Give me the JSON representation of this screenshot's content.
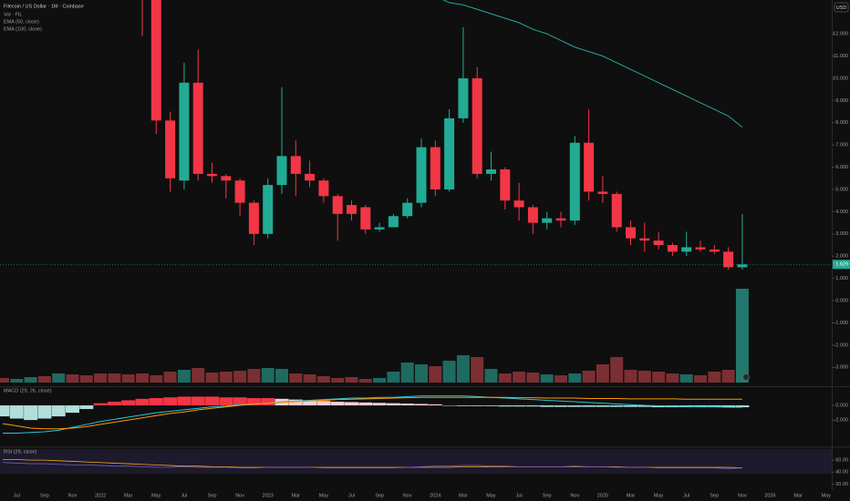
{
  "chart_data": {
    "type": "candlestick",
    "title": "Filecoin / US Dollar · 1M · Coinbase",
    "currency": "USD",
    "categories": [
      null,
      "Jul",
      null,
      "Sep",
      null,
      "Nov",
      null,
      "2022",
      null,
      "Mar",
      null,
      "May",
      null,
      "Jul",
      null,
      "Sep",
      null,
      "Nov",
      null,
      "2023",
      null,
      "Mar",
      null,
      "May",
      null,
      "Jul",
      null,
      "Sep",
      null,
      "Nov",
      null,
      "2024",
      null,
      "Mar",
      null,
      "May",
      null,
      "Jul",
      null,
      "Sep",
      null,
      "Nov",
      null,
      "2025",
      null,
      "Mar",
      null,
      "May",
      null,
      "Jul",
      null,
      "Sep",
      null,
      "Nov",
      null,
      "2026",
      null,
      "Mar",
      null,
      "May"
    ],
    "open": [
      null,
      null,
      null,
      null,
      null,
      null,
      null,
      null,
      null,
      null,
      28,
      20,
      8.1,
      5.4,
      9.8,
      5.7,
      5.6,
      5.4,
      4.4,
      3.0,
      5.2,
      6.5,
      5.7,
      5.4,
      4.7,
      4.3,
      4.2,
      3.2,
      3.3,
      3.8,
      4.4,
      6.9,
      5.0,
      8.2,
      10.0,
      5.7,
      5.9,
      4.5,
      4.2,
      3.5,
      3.7,
      3.6,
      7.1,
      4.9,
      4.8,
      3.3,
      2.8,
      2.7,
      2.5,
      2.2,
      2.4,
      2.3,
      2.2,
      1.5,
      null,
      null,
      null,
      null,
      null,
      null
    ],
    "high": [
      null,
      null,
      null,
      null,
      null,
      null,
      null,
      null,
      null,
      null,
      30,
      21,
      8.5,
      10.7,
      11.3,
      6.2,
      5.7,
      5.5,
      4.5,
      5.5,
      9.6,
      7.2,
      6.3,
      5.5,
      4.8,
      4.5,
      4.3,
      3.5,
      3.9,
      4.6,
      7.3,
      7.2,
      8.6,
      12.3,
      10.5,
      6.7,
      6.0,
      5.3,
      4.3,
      4.0,
      4.0,
      7.4,
      8.6,
      5.6,
      4.9,
      3.6,
      3.5,
      3.1,
      2.6,
      3.1,
      2.7,
      2.5,
      2.4,
      3.9,
      null,
      null,
      null,
      null,
      null,
      null
    ],
    "low": [
      null,
      null,
      null,
      null,
      null,
      null,
      null,
      null,
      null,
      null,
      11.9,
      7.5,
      4.9,
      5.0,
      5.4,
      5.3,
      4.6,
      3.8,
      2.5,
      2.8,
      4.8,
      4.7,
      5.1,
      4.4,
      2.7,
      3.6,
      3.0,
      3.1,
      3.3,
      3.7,
      4.2,
      4.7,
      4.9,
      8.0,
      5.5,
      5.4,
      4.1,
      3.6,
      3.0,
      3.2,
      3.3,
      3.4,
      4.5,
      4.4,
      3.1,
      2.5,
      2.2,
      2.3,
      2.0,
      2.0,
      2.2,
      2.1,
      1.4,
      1.4,
      null,
      null,
      null,
      null,
      null,
      null
    ],
    "close": [
      null,
      null,
      null,
      null,
      null,
      null,
      null,
      null,
      null,
      null,
      20,
      8.1,
      5.5,
      9.8,
      5.7,
      5.6,
      5.4,
      4.4,
      3.0,
      5.2,
      6.5,
      5.7,
      5.4,
      4.7,
      3.9,
      3.9,
      3.2,
      3.3,
      3.8,
      4.4,
      6.9,
      5.0,
      8.2,
      10.0,
      5.7,
      5.9,
      4.5,
      4.2,
      3.5,
      3.7,
      3.6,
      7.1,
      4.9,
      4.8,
      3.3,
      2.8,
      2.7,
      2.5,
      2.2,
      2.4,
      2.3,
      2.2,
      1.5,
      1.629,
      null,
      null,
      null,
      null,
      null,
      null
    ],
    "up_color": "#22ab94",
    "down_color": "#f23645",
    "ylim": [
      -3.85,
      13.52
    ],
    "yticks": [
      {
        "value": 12,
        "label": "12.000"
      },
      {
        "value": 11,
        "label": "11.000"
      },
      {
        "value": 10,
        "label": "10.000"
      },
      {
        "value": 9,
        "label": "9.000"
      },
      {
        "value": 8,
        "label": "8.000"
      },
      {
        "value": 7,
        "label": "7.000"
      },
      {
        "value": 6,
        "label": "6.000"
      },
      {
        "value": 5,
        "label": "5.000"
      },
      {
        "value": 4,
        "label": "4.000"
      },
      {
        "value": 3,
        "label": "3.000"
      },
      {
        "value": 2,
        "label": "2.000"
      },
      {
        "value": 1,
        "label": "1.000"
      },
      {
        "value": 0,
        "label": "0.000"
      },
      {
        "value": -1,
        "label": "-1.000"
      },
      {
        "value": -2,
        "label": "-2.000"
      },
      {
        "value": -3,
        "label": "-3.000"
      }
    ],
    "grid": false,
    "volume": {
      "title": "Vol · FIL",
      "ylim": [
        0,
        110
      ],
      "values": [
        5,
        4,
        6,
        7,
        10,
        9,
        8,
        10,
        10,
        9,
        10,
        8,
        12,
        14,
        16,
        11,
        12,
        13,
        15,
        16,
        15,
        10,
        9,
        7,
        5,
        6,
        4,
        5,
        12,
        22,
        20,
        18,
        24,
        30,
        28,
        15,
        10,
        12,
        11,
        9,
        8,
        10,
        13,
        20,
        28,
        14,
        13,
        12,
        10,
        9,
        8,
        12,
        14,
        103,
        null,
        null,
        null,
        null,
        null,
        null
      ],
      "colors": [
        "#7b2f33",
        "#1d6b61",
        "#1d6b61",
        "#7b2f33",
        "#1d6b61",
        "#7b2f33",
        "#7b2f33",
        "#7b2f33",
        "#7b2f33",
        "#7b2f33",
        "#7b2f33",
        "#7b2f33",
        "#7b2f33",
        "#1d6b61",
        "#7b2f33",
        "#7b2f33",
        "#7b2f33",
        "#7b2f33",
        "#7b2f33",
        "#1d6b61",
        "#1d6b61",
        "#7b2f33",
        "#7b2f33",
        "#7b2f33",
        "#7b2f33",
        "#7b2f33",
        "#7b2f33",
        "#1d6b61",
        "#1d6b61",
        "#1d6b61",
        "#1d6b61",
        "#7b2f33",
        "#1d6b61",
        "#1d6b61",
        "#7b2f33",
        "#1d6b61",
        "#7b2f33",
        "#7b2f33",
        "#7b2f33",
        "#1d6b61",
        "#7b2f33",
        "#1d6b61",
        "#7b2f33",
        "#7b2f33",
        "#7b2f33",
        "#7b2f33",
        "#7b2f33",
        "#7b2f33",
        "#7b2f33",
        "#1d6b61",
        "#7b2f33",
        "#7b2f33",
        "#7b2f33",
        "#22786d",
        null,
        null,
        null,
        null,
        null,
        null
      ]
    },
    "ema50": {
      "title": "EMA (50, close)"
    },
    "ema100": {
      "title": "EMA (100, close)",
      "color": "#26a69a",
      "values": [
        null,
        null,
        null,
        null,
        null,
        null,
        null,
        null,
        null,
        null,
        null,
        null,
        null,
        null,
        null,
        null,
        null,
        null,
        null,
        null,
        null,
        null,
        null,
        null,
        null,
        null,
        null,
        null,
        null,
        null,
        null,
        13.7,
        13.4,
        13.3,
        13.1,
        12.9,
        12.7,
        12.5,
        12.2,
        12.0,
        11.7,
        11.4,
        11.2,
        11.0,
        10.7,
        10.4,
        10.1,
        9.8,
        9.5,
        9.2,
        8.9,
        8.6,
        8.3,
        7.8,
        null,
        null,
        null,
        null,
        null,
        null
      ]
    },
    "macd": {
      "title": "MACD (29, 26, close)",
      "ylim": [
        -5.6,
        2.5
      ],
      "yticks": [
        {
          "value": 0,
          "label": "0.000"
        },
        {
          "value": -2,
          "label": "-2.000"
        }
      ],
      "histogram": [
        -1.5,
        -1.8,
        -2.0,
        -1.8,
        -1.5,
        -1.0,
        -0.5,
        0.3,
        0.5,
        0.7,
        0.9,
        1.0,
        1.1,
        1.2,
        1.2,
        1.2,
        1.1,
        1.1,
        1.0,
        1.0,
        0.9,
        0.8,
        0.7,
        0.6,
        0.5,
        0.45,
        0.4,
        0.35,
        0.3,
        0.25,
        0.2,
        0.15,
        -0.05,
        -0.1,
        -0.1,
        -0.1,
        -0.15,
        -0.15,
        -0.15,
        -0.2,
        -0.2,
        -0.2,
        -0.2,
        -0.2,
        -0.2,
        -0.2,
        -0.2,
        -0.25,
        -0.25,
        -0.25,
        -0.25,
        -0.25,
        -0.25,
        -0.25,
        null,
        null,
        null,
        null,
        null,
        null
      ],
      "histogram_colors": [
        "#b2dfdb",
        "#b2dfdb",
        "#b2dfdb",
        "#b2dfdb",
        "#b2dfdb",
        "#b2dfdb",
        "#b2dfdb",
        "#f23645",
        "#f23645",
        "#f23645",
        "#f23645",
        "#f23645",
        "#f23645",
        "#f23645",
        "#f23645",
        "#f23645",
        "#f23645",
        "#f23645",
        "#f23645",
        "#f23645",
        "#ffcdd2",
        "#ffcdd2",
        "#ffcdd2",
        "#ffcdd2",
        "#ffcdd2",
        "#ffcdd2",
        "#ffcdd2",
        "#ffcdd2",
        "#ffcdd2",
        "#ffcdd2",
        "#ffcdd2",
        "#ffcdd2",
        "#b2dfdb",
        "#b2dfdb",
        "#b2dfdb",
        "#b2dfdb",
        "#b2dfdb",
        "#b2dfdb",
        "#b2dfdb",
        "#b2dfdb",
        "#b2dfdb",
        "#b2dfdb",
        "#b2dfdb",
        "#b2dfdb",
        "#b2dfdb",
        "#b2dfdb",
        "#b2dfdb",
        "#b2dfdb",
        "#b2dfdb",
        "#b2dfdb",
        "#b2dfdb",
        "#b2dfdb",
        "#b2dfdb",
        "#b2dfdb",
        null,
        null,
        null,
        null,
        null,
        null
      ],
      "macd": [
        -3.8,
        -3.8,
        -3.7,
        -3.6,
        -3.4,
        -3.0,
        -2.6,
        -2.2,
        -1.9,
        -1.6,
        -1.3,
        -1.0,
        -0.8,
        -0.6,
        -0.4,
        -0.2,
        -0.1,
        0.1,
        0.2,
        0.3,
        0.5,
        0.6,
        0.7,
        0.8,
        0.9,
        1.0,
        1.0,
        1.1,
        1.1,
        1.2,
        1.3,
        1.3,
        1.3,
        1.3,
        1.2,
        1.1,
        1.0,
        0.9,
        0.8,
        0.7,
        0.6,
        0.5,
        0.4,
        0.3,
        0.2,
        0.1,
        0.0,
        -0.05,
        -0.1,
        -0.15,
        -0.2,
        -0.2,
        -0.25,
        -0.25,
        null,
        null,
        null,
        null,
        null,
        null
      ],
      "signal": [
        -2.5,
        -2.8,
        -3.1,
        -3.2,
        -3.2,
        -3.1,
        -2.9,
        -2.6,
        -2.3,
        -2.0,
        -1.7,
        -1.4,
        -1.1,
        -0.9,
        -0.6,
        -0.4,
        -0.2,
        0,
        0.2,
        0.3,
        0.4,
        0.5,
        0.6,
        0.7,
        0.8,
        0.85,
        0.9,
        0.95,
        1.0,
        1.05,
        1.1,
        1.1,
        1.1,
        1.1,
        1.1,
        1.1,
        1.1,
        1.05,
        1.05,
        1.0,
        1.0,
        1.0,
        0.95,
        0.95,
        0.95,
        0.9,
        0.9,
        0.9,
        0.9,
        0.85,
        0.85,
        0.85,
        0.85,
        0.85,
        null,
        null,
        null,
        null,
        null,
        null
      ],
      "macd_color": "#26c6da",
      "signal_color": "#ff9800"
    },
    "rsi": {
      "title": "RSI (29, close)",
      "ylim": [
        13,
        80
      ],
      "yticks": [
        {
          "value": 60,
          "label": "60.00"
        },
        {
          "value": 40,
          "label": "40.00"
        },
        {
          "value": 20,
          "label": "20.00"
        }
      ],
      "values": [
        56,
        55,
        54,
        54,
        53,
        52,
        52,
        51,
        50,
        50,
        49,
        48,
        48,
        49,
        48,
        48,
        48,
        47,
        47,
        48,
        48,
        48,
        48,
        47,
        47,
        47,
        47,
        47,
        47,
        48,
        49,
        50,
        50,
        51,
        51,
        50,
        50,
        49,
        49,
        49,
        49,
        50,
        49,
        49,
        48,
        48,
        48,
        47,
        47,
        47,
        47,
        47,
        46,
        47,
        null,
        null,
        null,
        null,
        null,
        null
      ],
      "ma": [
        61,
        61,
        60,
        60,
        59,
        58,
        57,
        56,
        55,
        54,
        53,
        52,
        51,
        50,
        50,
        49,
        49,
        48,
        48,
        48,
        48,
        48,
        48,
        48,
        48,
        48,
        48,
        48,
        48,
        48,
        48,
        48,
        48,
        49,
        49,
        49,
        49,
        49,
        49,
        49,
        49,
        49,
        49,
        49,
        49,
        48,
        48,
        48,
        48,
        48,
        48,
        48,
        48,
        47,
        null,
        null,
        null,
        null,
        null,
        null
      ],
      "color": "#7e57c2",
      "ma_color": "#f5a623"
    }
  }
}
